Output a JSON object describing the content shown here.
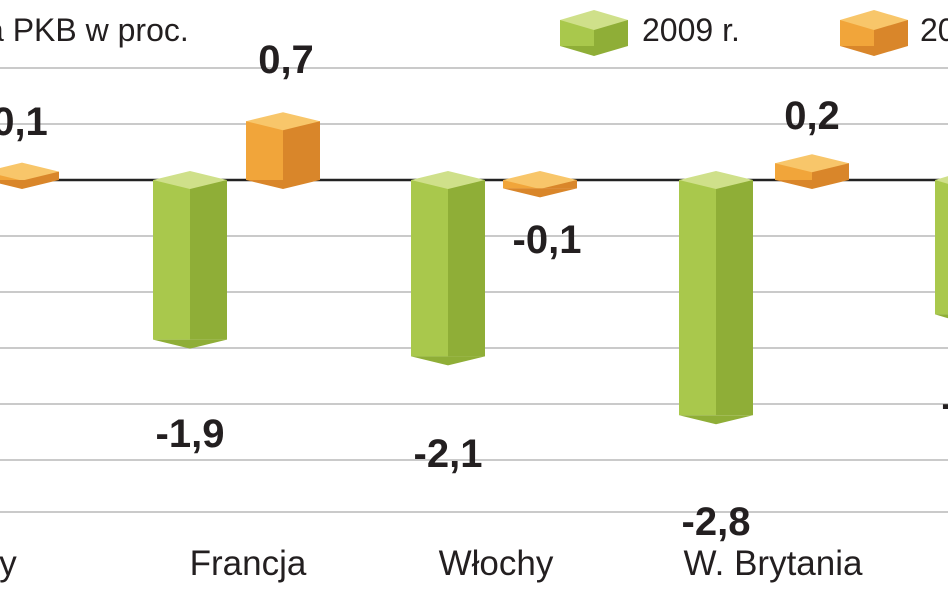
{
  "chart_data": {
    "type": "bar",
    "ylabel": "a PKB w proc.",
    "categories": [
      "y",
      "Francja",
      "Włochy",
      "W. Brytania",
      ""
    ],
    "series": [
      {
        "name": "2009 r.",
        "color": "#a6c94a",
        "values": [
          null,
          -1.9,
          -2.1,
          -2.8,
          null
        ]
      },
      {
        "name": "20",
        "color": "#f2a33a",
        "values": [
          0.1,
          0.7,
          -0.1,
          0.2,
          null
        ]
      }
    ],
    "value_labels": {
      "series0": [
        null,
        "-1,9",
        "-2,1",
        "-2,8",
        "-"
      ],
      "series1": [
        "0,1",
        "0,7",
        "-0,1",
        "0,2",
        null
      ]
    },
    "grid": true,
    "legend_position": "top"
  }
}
